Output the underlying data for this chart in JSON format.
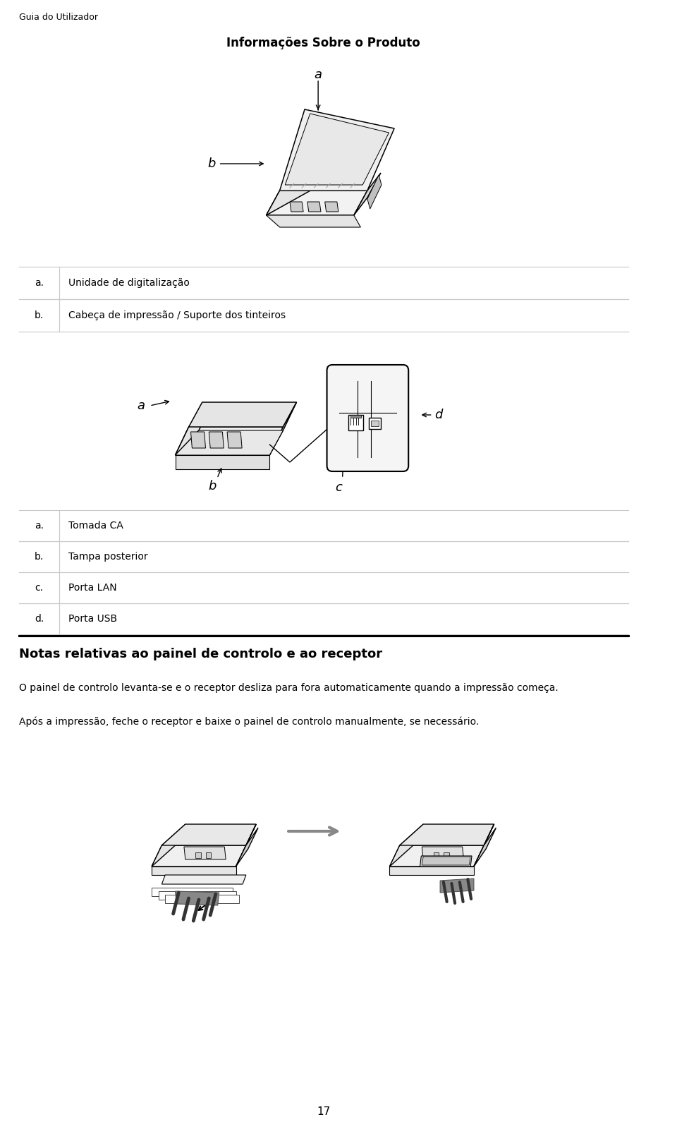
{
  "background_color": "#ffffff",
  "page_width": 9.6,
  "page_height": 16.0,
  "header_text": "Guia do Utilizador",
  "title_text": "Informações Sobre o Produto",
  "table1_rows": [
    [
      "a.",
      "Unidade de digitalização"
    ],
    [
      "b.",
      "Cabeça de impressão / Suporte dos tinteiros"
    ]
  ],
  "table2_rows": [
    [
      "a.",
      "Tomada CA"
    ],
    [
      "b.",
      "Tampa posterior"
    ],
    [
      "c.",
      "Porta LAN"
    ],
    [
      "d.",
      "Porta USB"
    ]
  ],
  "section_title": "Notas relativas ao painel de controlo e ao receptor",
  "para1": "O painel de controlo levanta-se e o receptor desliza para fora automaticamente quando a impressão começa.",
  "para2": "Após a impressão, feche o receptor e baixe o painel de controlo manualmente, se necessário.",
  "footer_page": "17",
  "text_color": "#000000",
  "line_color": "#000000",
  "table_line_color": "#c8c8c8",
  "header_font_size": 9,
  "title_font_size": 12,
  "label_font_size": 10,
  "body_font_size": 10,
  "section_font_size": 13
}
